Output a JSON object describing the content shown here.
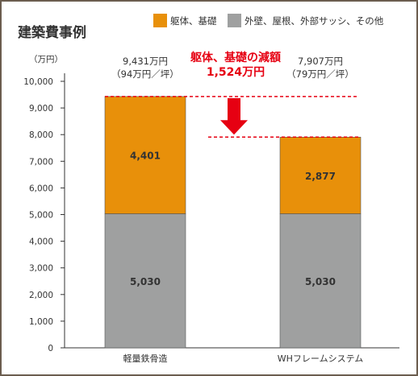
{
  "chart_data": {
    "type": "bar",
    "stacked": true,
    "title": "建築費事例",
    "ylabel": "（万円）",
    "ylim": [
      0,
      11000
    ],
    "yticks": [
      "0",
      "1,000",
      "2,000",
      "3,000",
      "4,000",
      "5,000",
      "6,000",
      "7,000",
      "8,000",
      "9,000",
      "10,000"
    ],
    "categories": [
      "軽量鉄骨造",
      "WHフレームシステム"
    ],
    "series": [
      {
        "name": "外壁、屋根、外部サッシ、その他",
        "color": "#9fa0a0",
        "values": [
          5030,
          5030
        ],
        "labels": [
          "5,030",
          "5,030"
        ]
      },
      {
        "name": "躯体、基礎",
        "color": "#e8900a",
        "values": [
          4401,
          2877
        ],
        "labels": [
          "4,401",
          "2,877"
        ]
      }
    ],
    "totals": [
      {
        "line1": "9,431万円",
        "line2": "（94万円／坪）",
        "value": 9431
      },
      {
        "line1": "7,907万円",
        "line2": "（79万円／坪）",
        "value": 7907
      }
    ],
    "annotation": {
      "line1": "躯体、基礎の減額",
      "line2": "1,524万円",
      "color": "#e60012"
    },
    "legend_position": "top-right",
    "grid": false
  }
}
